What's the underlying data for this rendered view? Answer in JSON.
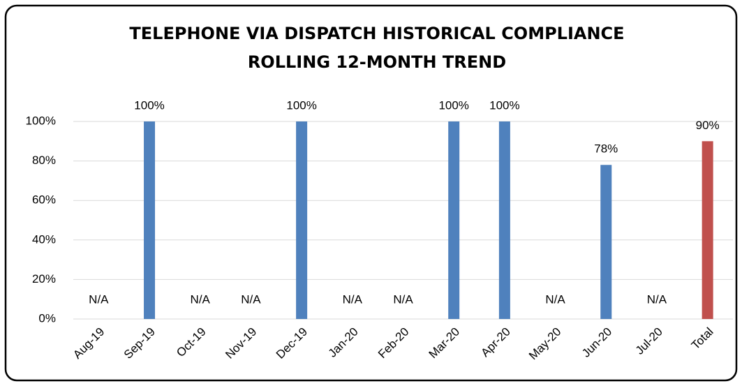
{
  "chart_data": {
    "type": "bar",
    "title": "TELEPHONE VIA DISPATCH HISTORICAL COMPLIANCE",
    "subtitle": "ROLLING 12-MONTH TREND",
    "categories": [
      "Aug-19",
      "Sep-19",
      "Oct-19",
      "Nov-19",
      "Dec-19",
      "Jan-20",
      "Feb-20",
      "Mar-20",
      "Apr-20",
      "May-20",
      "Jun-20",
      "Jul-20",
      "Total"
    ],
    "values": [
      null,
      100,
      null,
      null,
      100,
      null,
      null,
      100,
      100,
      null,
      78,
      null,
      90
    ],
    "value_labels": [
      "N/A",
      "100%",
      "N/A",
      "N/A",
      "100%",
      "N/A",
      "N/A",
      "100%",
      "100%",
      "N/A",
      "78%",
      "N/A",
      "90%"
    ],
    "colors": [
      "#4f81bd",
      "#4f81bd",
      "#4f81bd",
      "#4f81bd",
      "#4f81bd",
      "#4f81bd",
      "#4f81bd",
      "#4f81bd",
      "#4f81bd",
      "#4f81bd",
      "#4f81bd",
      "#4f81bd",
      "#c0504d"
    ],
    "ylim": [
      0,
      100
    ],
    "yticks": [
      {
        "value": 0,
        "label": "0%"
      },
      {
        "value": 20,
        "label": "20%"
      },
      {
        "value": 40,
        "label": "40%"
      },
      {
        "value": 60,
        "label": "60%"
      },
      {
        "value": 80,
        "label": "80%"
      },
      {
        "value": 100,
        "label": "100%"
      }
    ],
    "grid": true
  }
}
